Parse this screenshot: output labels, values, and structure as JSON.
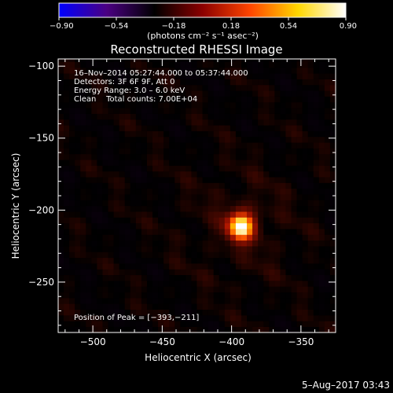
{
  "chart_data": {
    "type": "heatmap",
    "title": "Reconstructed RHESSI Image",
    "xlabel": "Heliocentric X (arcsec)",
    "ylabel": "Heliocentric Y (arcsec)",
    "xlim": [
      -525,
      -325
    ],
    "ylim": [
      -285,
      -95
    ],
    "x_ticks": [
      -500,
      -450,
      -400,
      -350
    ],
    "y_ticks": [
      -100,
      -150,
      -200,
      -250
    ],
    "x_tick_labels": [
      "−500",
      "−450",
      "−400",
      "−350"
    ],
    "y_tick_labels": [
      "−100",
      "−150",
      "−200",
      "−250"
    ],
    "colorbar": {
      "range": [
        -0.9,
        0.9
      ],
      "ticks": [
        -0.9,
        -0.54,
        -0.18,
        0.18,
        0.54,
        0.9
      ],
      "tick_labels": [
        "−0.90",
        "−0.54",
        "−0.18",
        "0.18",
        "0.54",
        "0.90"
      ],
      "unit_text": "(photons cm⁻² s⁻¹ asec⁻²)",
      "colors": [
        "#0000ff",
        "#4b0082",
        "#000000",
        "#8b0000",
        "#ff4500",
        "#ffd700",
        "#ffffff"
      ]
    },
    "source": {
      "peak_x": -393,
      "peak_y": -211,
      "peak_value": 0.9
    },
    "grid": false
  },
  "annotations": {
    "line1": "16–Nov–2014 05:27:44.000 to 05:37:44.000",
    "line2": "Detectors: 3F 6F 9F, Att 0",
    "line3": "Energy Range: 3.0 – 6.0 keV",
    "line4": "Clean    Total counts: 7.00E+04",
    "peak_text": "Position of Peak = [−393,−211]"
  },
  "timestamp": "5–Aug–2017 03:43"
}
